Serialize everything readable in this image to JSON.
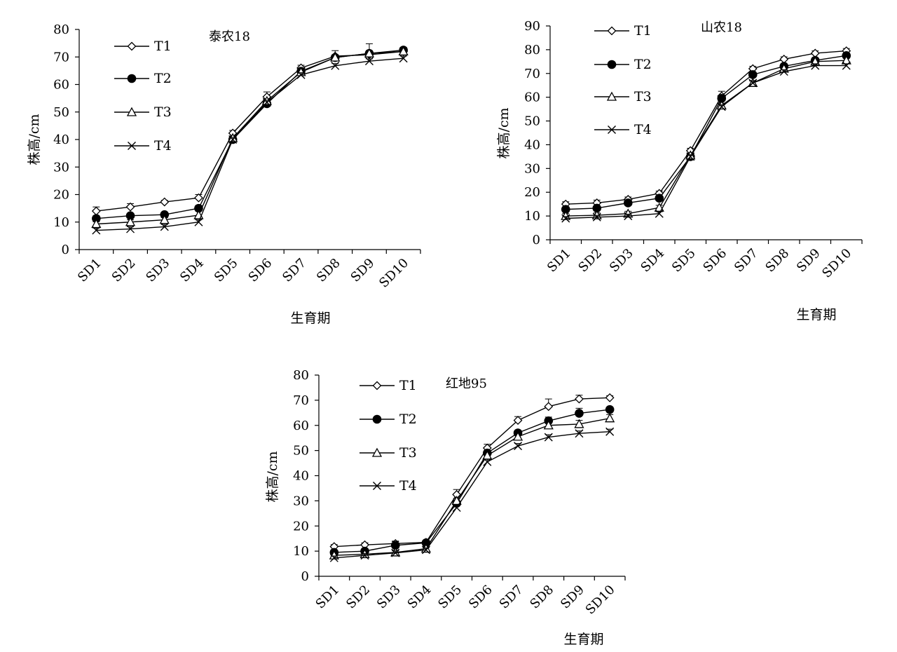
{
  "chart_data": [
    {
      "type": "line",
      "title": "泰农18",
      "xlabel": "生育期",
      "ylabel": "株高/cm",
      "categories": [
        "SD1",
        "SD2",
        "SD3",
        "SD4",
        "SD5",
        "SD6",
        "SD7",
        "SD8",
        "SD9",
        "SD10"
      ],
      "ylim": [
        0,
        80
      ],
      "yticks": [
        0,
        10,
        20,
        30,
        40,
        50,
        60,
        70,
        80
      ],
      "legend_position": "top-left",
      "grid": false,
      "series": [
        {
          "name": "T1",
          "marker": "diamond",
          "values": [
            14.0,
            15.5,
            17.3,
            18.8,
            42.3,
            55.5,
            66.0,
            70.3,
            70.8,
            72.0
          ],
          "errors": [
            1.5,
            1.2,
            0.6,
            1.2,
            1.0,
            1.8,
            1.0,
            2.0,
            1.0,
            0.8
          ]
        },
        {
          "name": "T2",
          "marker": "filled-circle",
          "values": [
            11.3,
            12.3,
            12.7,
            15.0,
            40.0,
            53.0,
            64.8,
            69.8,
            71.3,
            72.5
          ],
          "errors": [
            1.0,
            0.8,
            0.8,
            1.0,
            1.0,
            0.8,
            1.0,
            1.0,
            1.0,
            1.0
          ]
        },
        {
          "name": "T3",
          "marker": "triangle",
          "values": [
            9.3,
            10.0,
            10.8,
            12.5,
            40.5,
            54.0,
            64.5,
            69.8,
            71.3,
            72.0
          ],
          "errors": [
            0.8,
            0.8,
            0.8,
            1.5,
            0.8,
            0.8,
            0.8,
            0.8,
            3.5,
            0.8
          ]
        },
        {
          "name": "T4",
          "marker": "x",
          "values": [
            7.0,
            7.5,
            8.3,
            10.0,
            40.0,
            53.5,
            63.5,
            66.8,
            68.5,
            69.5
          ],
          "errors": [
            0.8,
            0.8,
            0.8,
            0.8,
            0.8,
            0.8,
            0.8,
            0.8,
            0.8,
            0.8
          ]
        }
      ]
    },
    {
      "type": "line",
      "title": "山农18",
      "xlabel": "生育期",
      "ylabel": "株高/cm",
      "categories": [
        "SD1",
        "SD2",
        "SD3",
        "SD4",
        "SD5",
        "SD6",
        "SD7",
        "SD8",
        "SD9",
        "SD10"
      ],
      "ylim": [
        0,
        90
      ],
      "yticks": [
        0,
        10,
        20,
        30,
        40,
        50,
        60,
        70,
        80,
        90
      ],
      "legend_position": "top-left",
      "grid": false,
      "series": [
        {
          "name": "T1",
          "marker": "diamond",
          "values": [
            15.0,
            15.5,
            17.0,
            19.5,
            37.5,
            60.5,
            72.0,
            76.0,
            78.5,
            79.5
          ],
          "errors": [
            1.0,
            1.2,
            1.0,
            1.0,
            1.0,
            2.0,
            1.0,
            1.0,
            1.0,
            1.0
          ]
        },
        {
          "name": "T2",
          "marker": "filled-circle",
          "values": [
            12.8,
            13.3,
            15.5,
            17.5,
            35.0,
            59.5,
            69.5,
            73.0,
            75.5,
            77.5
          ],
          "errors": [
            1.0,
            1.0,
            1.0,
            1.0,
            1.0,
            1.0,
            1.0,
            1.0,
            1.0,
            1.0
          ]
        },
        {
          "name": "T3",
          "marker": "triangle",
          "values": [
            10.0,
            10.3,
            11.0,
            13.5,
            35.5,
            56.5,
            66.0,
            72.0,
            75.0,
            75.5
          ],
          "errors": [
            1.0,
            1.0,
            1.0,
            1.0,
            1.0,
            1.0,
            1.0,
            1.0,
            1.0,
            1.0
          ]
        },
        {
          "name": "T4",
          "marker": "x",
          "values": [
            9.0,
            9.5,
            10.0,
            11.0,
            35.0,
            56.0,
            66.0,
            70.8,
            73.3,
            73.3
          ],
          "errors": [
            0.8,
            0.8,
            0.8,
            0.8,
            0.8,
            0.8,
            0.8,
            0.8,
            0.8,
            0.8
          ]
        }
      ]
    },
    {
      "type": "line",
      "title": "红地95",
      "xlabel": "生育期",
      "ylabel": "株高/cm",
      "categories": [
        "SD1",
        "SD2",
        "SD3",
        "SD4",
        "SD5",
        "SD6",
        "SD7",
        "SD8",
        "SD9",
        "SD10"
      ],
      "ylim": [
        0,
        80
      ],
      "yticks": [
        0,
        10,
        20,
        30,
        40,
        50,
        60,
        70,
        80
      ],
      "legend_position": "top-left",
      "grid": false,
      "series": [
        {
          "name": "T1",
          "marker": "diamond",
          "values": [
            11.8,
            12.5,
            13.0,
            13.5,
            32.5,
            51.0,
            62.0,
            67.5,
            70.5,
            71.0
          ],
          "errors": [
            0.8,
            0.8,
            1.0,
            0.8,
            2.0,
            1.5,
            1.5,
            3.0,
            1.5,
            0.8
          ]
        },
        {
          "name": "T2",
          "marker": "filled-circle",
          "values": [
            9.5,
            10.0,
            12.3,
            13.3,
            29.0,
            49.0,
            57.0,
            61.8,
            64.8,
            66.3
          ],
          "errors": [
            0.8,
            0.8,
            1.5,
            0.8,
            1.0,
            1.0,
            1.0,
            1.5,
            2.0,
            1.0
          ]
        },
        {
          "name": "T3",
          "marker": "triangle",
          "values": [
            8.3,
            8.8,
            9.5,
            11.0,
            30.0,
            48.0,
            55.5,
            60.0,
            60.5,
            62.8
          ],
          "errors": [
            0.8,
            0.8,
            0.8,
            0.8,
            1.0,
            1.0,
            1.0,
            1.0,
            1.5,
            1.5
          ]
        },
        {
          "name": "T4",
          "marker": "x",
          "values": [
            7.3,
            8.3,
            9.3,
            10.5,
            27.3,
            45.5,
            51.8,
            55.3,
            56.8,
            57.5
          ],
          "errors": [
            0.8,
            0.8,
            0.8,
            0.8,
            1.0,
            1.0,
            1.0,
            1.0,
            1.0,
            1.0
          ]
        }
      ]
    }
  ]
}
